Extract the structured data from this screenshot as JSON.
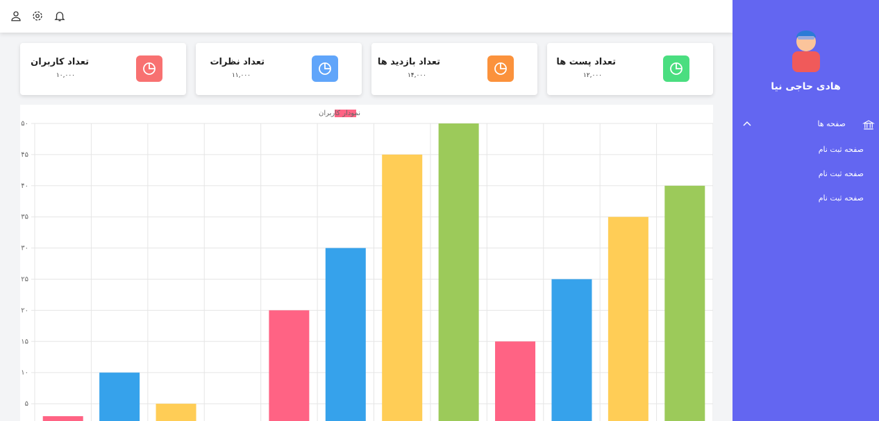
{
  "sidebar": {
    "user_name": "هادی حاجی نیا",
    "menu": {
      "title": "صفحه ها",
      "items": [
        "صفحه ثبت نام",
        "صفحه ثبت نام",
        "صفحه ثبت نام"
      ]
    }
  },
  "cards": [
    {
      "title": "تعداد پست ها",
      "value": "۱۲,۰۰۰",
      "color": "#4ade80"
    },
    {
      "title": "تعداد بازدید ها",
      "value": "۱۴,۰۰۰",
      "color": "#fb923c"
    },
    {
      "title": "تعداد نظرات",
      "value": "۱۱,۰۰۰",
      "color": "#60a5fa"
    },
    {
      "title": "تعداد کاربران",
      "value": "۱۰,۰۰۰",
      "color": "#f87171"
    }
  ],
  "chart_data": {
    "type": "bar",
    "categories": [
      null,
      null,
      null,
      null,
      null,
      null,
      null,
      null,
      null,
      null,
      null,
      null
    ],
    "series": [
      {
        "name": "نمودار کاربران",
        "colors": [
          "#ff6384",
          "#36a2eb",
          "#ffcd56",
          "#9cca5a"
        ],
        "values": [
          3,
          10,
          5,
          0,
          20,
          30,
          45,
          50,
          15,
          25,
          35,
          40
        ]
      }
    ],
    "ylim": [
      0,
      50
    ],
    "yticks": [
      {
        "value": 5,
        "label": "۵"
      },
      {
        "value": 10,
        "label": "۱۰"
      },
      {
        "value": 15,
        "label": "۱۵"
      },
      {
        "value": 20,
        "label": "۲۰"
      },
      {
        "value": 25,
        "label": "۲۵"
      },
      {
        "value": 30,
        "label": "۳۰"
      },
      {
        "value": 35,
        "label": "۳۵"
      },
      {
        "value": 40,
        "label": "۴۰"
      },
      {
        "value": 45,
        "label": "۴۵"
      },
      {
        "value": 50,
        "label": "۵۰"
      }
    ],
    "grid": true
  }
}
